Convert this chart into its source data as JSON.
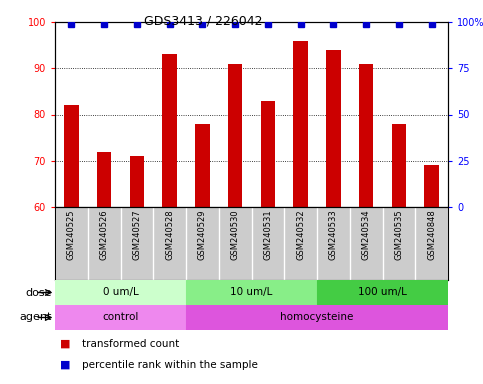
{
  "title": "GDS3413 / 226042",
  "samples": [
    "GSM240525",
    "GSM240526",
    "GSM240527",
    "GSM240528",
    "GSM240529",
    "GSM240530",
    "GSM240531",
    "GSM240532",
    "GSM240533",
    "GSM240534",
    "GSM240535",
    "GSM240848"
  ],
  "bar_values": [
    82,
    72,
    71,
    93,
    78,
    91,
    83,
    96,
    94,
    91,
    78,
    69
  ],
  "percentile_values": [
    99,
    99,
    99,
    99,
    99,
    99,
    99,
    99,
    99,
    99,
    99,
    99
  ],
  "bar_color": "#cc0000",
  "dot_color": "#0000cc",
  "ylim_left": [
    60,
    100
  ],
  "ylim_right": [
    0,
    100
  ],
  "yticks_left": [
    60,
    70,
    80,
    90,
    100
  ],
  "ytick_labels_left": [
    "60",
    "70",
    "80",
    "90",
    "100"
  ],
  "yticks_right_vals": [
    0,
    25,
    50,
    75,
    100
  ],
  "ytick_labels_right": [
    "0",
    "25",
    "50",
    "75",
    "100%"
  ],
  "grid_values": [
    70,
    80,
    90
  ],
  "dose_groups": [
    {
      "label": "0 um/L",
      "start": 0,
      "end": 4,
      "color": "#ccffcc"
    },
    {
      "label": "10 um/L",
      "start": 4,
      "end": 8,
      "color": "#88ee88"
    },
    {
      "label": "100 um/L",
      "start": 8,
      "end": 12,
      "color": "#44cc44"
    }
  ],
  "agent_groups": [
    {
      "label": "control",
      "start": 0,
      "end": 4,
      "color": "#ee88ee"
    },
    {
      "label": "homocysteine",
      "start": 4,
      "end": 12,
      "color": "#dd55dd"
    }
  ],
  "dose_label": "dose",
  "agent_label": "agent",
  "legend_bar_label": "transformed count",
  "legend_dot_label": "percentile rank within the sample",
  "background_color": "#ffffff",
  "tick_area_bg": "#cccccc",
  "fig_width": 4.83,
  "fig_height": 3.84,
  "fig_dpi": 100
}
